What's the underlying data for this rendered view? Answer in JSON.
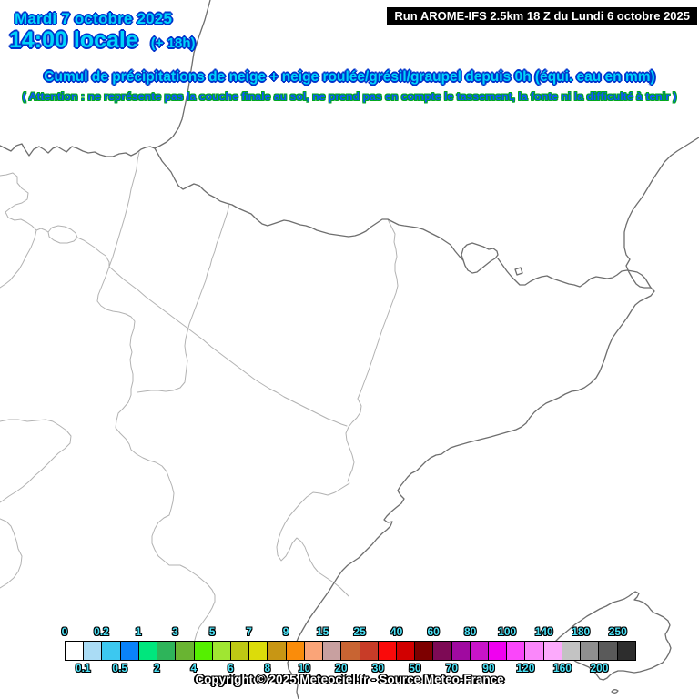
{
  "header": {
    "date_line": "Mardi 7 octobre 2025",
    "time_line": "14:00 locale",
    "time_offset": "(+ 18h)",
    "run_info": "Run AROME-IFS 2.5km 18 Z du Lundi 6 octobre 2025"
  },
  "title": "Cumul de précipitations de neige + neige roulée/grésil/graupel depuis 0h (équi. eau en mm)",
  "warning": "( Attention : ne représente pas la couche finale au sol, ne prend pas en compte le tassement, la fonte ni la difficulté à tenir )",
  "footer": {
    "copyright": "Copyright © 2025 Meteociel.fr - Source Meteo-France"
  },
  "legend": {
    "values": [
      "0",
      "0.1",
      "0.2",
      "0.5",
      "1",
      "2",
      "3",
      "4",
      "5",
      "6",
      "7",
      "8",
      "9",
      "10",
      "15",
      "20",
      "25",
      "30",
      "40",
      "50",
      "60",
      "70",
      "80",
      "90",
      "100",
      "120",
      "140",
      "160",
      "180",
      "200",
      "250"
    ],
    "cell_colors": [
      "#ffffff",
      "#aadcf5",
      "#3cc8f0",
      "#0a82fa",
      "#00e67d",
      "#2eb45a",
      "#69b432",
      "#55f000",
      "#a0e632",
      "#bec814",
      "#dcdc0a",
      "#c89614",
      "#fa8c0a",
      "#faa478",
      "#c8a0a0",
      "#c86432",
      "#c83c28",
      "#fa0a0a",
      "#d20000",
      "#7d0000",
      "#7d0a55",
      "#a00aa0",
      "#c814c8",
      "#f000f0",
      "#fa46fa",
      "#fa87fa",
      "#fcaafc",
      "#c3c3c3",
      "#8f8f8f",
      "#5a5a5a",
      "#2d2d2d"
    ],
    "note": "last cell represents values above 250"
  },
  "map": {
    "region": "Pyrenees / northern Spain / southern France / Mallorca",
    "features": [
      "atlantic-coast",
      "cantabrian-coast",
      "spain-france-border",
      "andorra",
      "llivia-enclave",
      "trevino-enclave",
      "mediterranean-coast",
      "ebro-delta",
      "mallorca",
      "province-borders"
    ],
    "background": "#ffffff",
    "coast_line_color": "#6e6e6e",
    "admin_line_color": "#b2b2b2"
  },
  "colors": {
    "header_text_fill": "#00d4f8",
    "header_text_outline": "#0033cc",
    "warning_fill": "#0f55ff",
    "warning_outline": "#00a81e",
    "run_box_bg": "#000000",
    "run_box_text": "#ffffff",
    "legend_label_fill": "#4ae0f5",
    "legend_label_outline": "#000000",
    "copyright_fill": "#ffffff",
    "copyright_outline": "#000000"
  }
}
